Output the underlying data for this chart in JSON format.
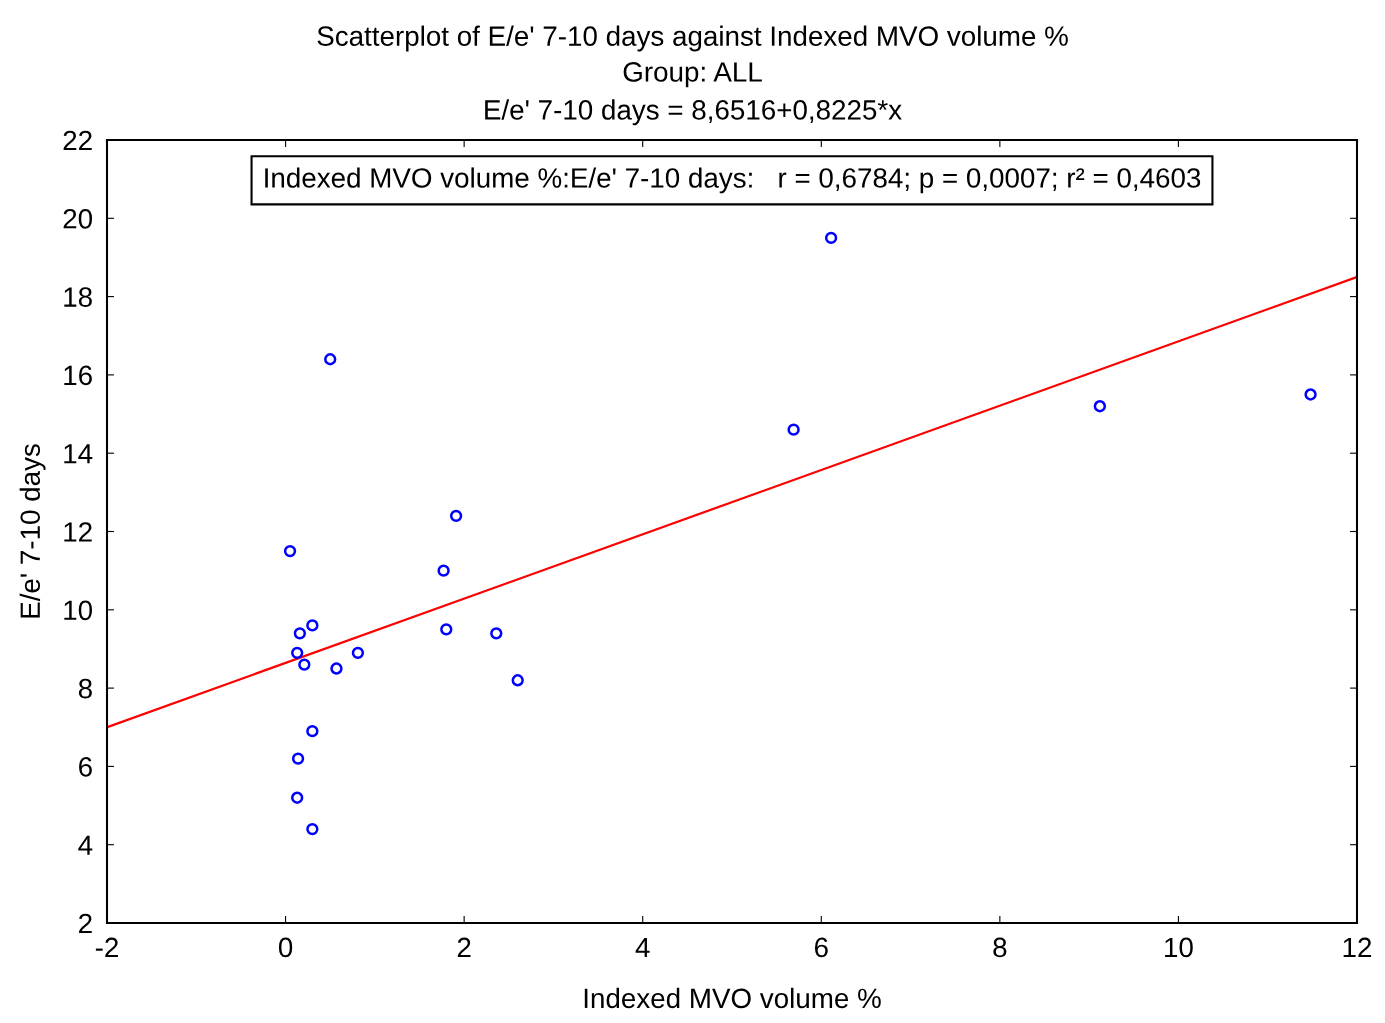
{
  "chart_data": {
    "type": "scatter",
    "title": "Scatterplot of E/e' 7-10 days against Indexed MVO volume %",
    "subtitle": "Group: ALL\nE/e' 7-10 days = 8,6516+0,8225*x",
    "xlabel": "Indexed MVO volume %",
    "ylabel": "E/e' 7-10 days",
    "annotations": [
      "Indexed MVO volume %:E/e' 7-10 days:   r = 0,6784; p = 0,0007; r² = 0,4603"
    ],
    "series": [
      {
        "color": "#0000ff",
        "marker": "circle",
        "x": [
          0.05,
          0.5,
          6.11,
          5.69,
          9.12,
          11.48,
          1.91,
          1.77,
          1.8,
          2.36,
          2.6,
          0.81,
          0.57,
          0.3,
          0.16,
          0.13,
          0.21,
          0.3,
          0.14,
          0.13,
          0.3
        ],
        "values": [
          11.5,
          16.4,
          19.5,
          14.6,
          15.2,
          15.5,
          12.4,
          11.0,
          9.5,
          9.4,
          8.2,
          8.9,
          8.5,
          9.6,
          9.4,
          8.9,
          8.6,
          6.9,
          6.2,
          5.2,
          4.4
        ]
      },
      {
        "type": "line",
        "color": "#ff0000",
        "marker": "none",
        "line_style": "solid",
        "x": [
          -2,
          12
        ],
        "values": [
          7.0,
          18.5
        ]
      }
    ],
    "xlim": [
      -2,
      12
    ],
    "ylim": [
      2,
      22
    ],
    "xticks": [
      -2,
      0,
      2,
      4,
      6,
      8,
      10,
      12
    ],
    "yticks": [
      2,
      4,
      6,
      8,
      10,
      12,
      14,
      16,
      18,
      20,
      22
    ],
    "grid": false,
    "legend": false
  }
}
